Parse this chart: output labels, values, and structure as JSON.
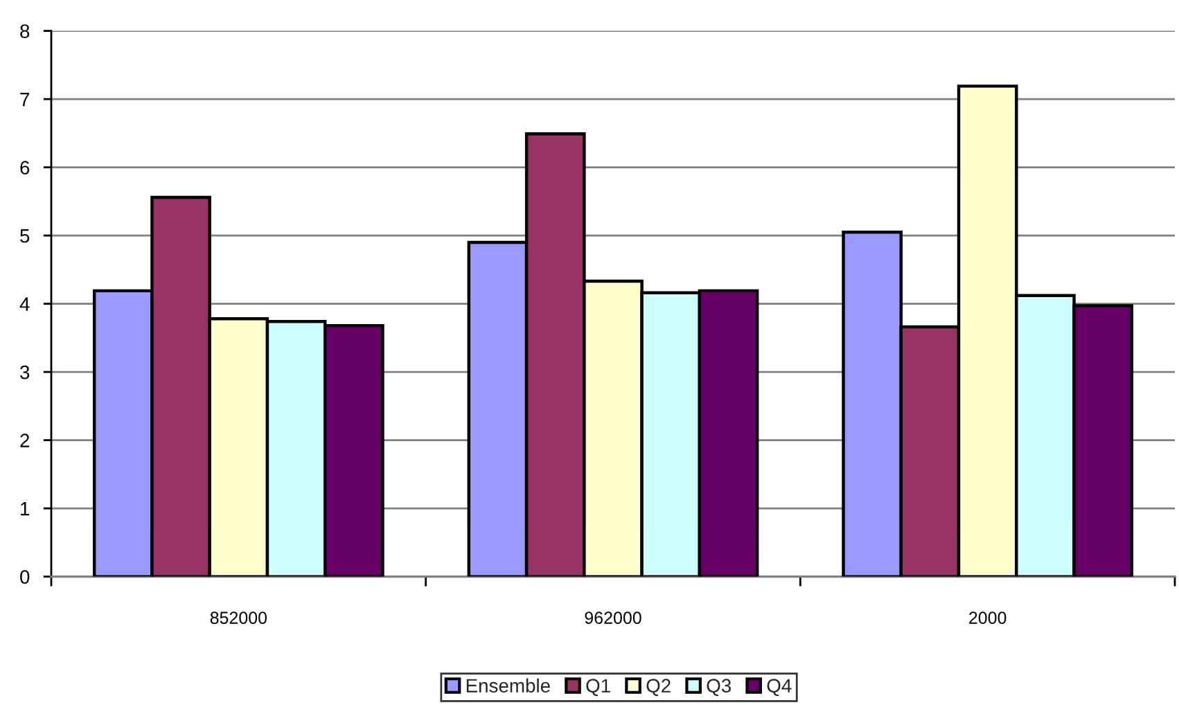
{
  "chart_data": {
    "type": "bar",
    "categories": [
      "852000",
      "962000",
      "2000"
    ],
    "series": [
      {
        "name": "Ensemble",
        "color": "#9999ff",
        "values": [
          4.19,
          4.9,
          5.05
        ]
      },
      {
        "name": "Q1",
        "color": "#993366",
        "values": [
          5.56,
          6.49,
          3.66
        ]
      },
      {
        "name": "Q2",
        "color": "#ffffcc",
        "values": [
          3.78,
          4.33,
          7.19
        ]
      },
      {
        "name": "Q3",
        "color": "#ccffff",
        "values": [
          3.74,
          4.16,
          4.12
        ]
      },
      {
        "name": "Q4",
        "color": "#660066",
        "values": [
          3.68,
          4.19,
          3.97
        ]
      }
    ],
    "ylim": [
      0,
      8
    ],
    "yticks": [
      0,
      1,
      2,
      3,
      4,
      5,
      6,
      7,
      8
    ],
    "grid": "y",
    "legend": "bottom"
  }
}
